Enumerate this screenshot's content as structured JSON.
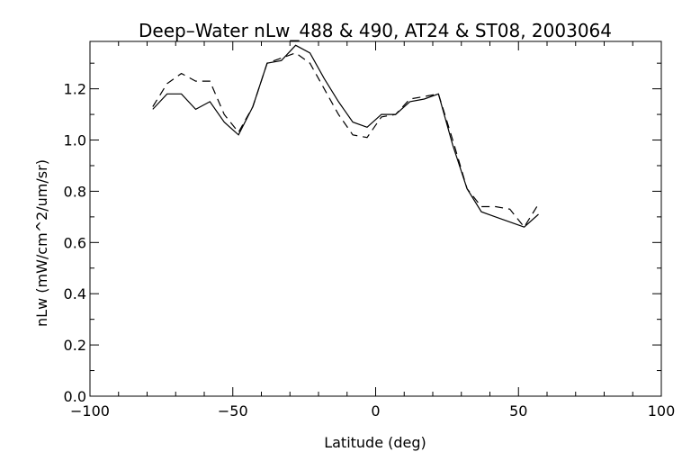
{
  "chart_data": {
    "type": "line",
    "title": "Deep–Water nLw_488 & 490, AT24 & ST08, 2003064",
    "xlabel": "Latitude (deg)",
    "ylabel": "nLw (mW/cm^2/um/sr)",
    "xlim": [
      -100,
      100
    ],
    "ylim": [
      0,
      1.385
    ],
    "grid": false,
    "x_ticks": [
      -100,
      -50,
      0,
      50,
      100
    ],
    "x_tick_labels": [
      "−100",
      "−50",
      "0",
      "50",
      "100"
    ],
    "y_ticks": [
      0.0,
      0.2,
      0.4,
      0.6,
      0.8,
      1.0,
      1.2
    ],
    "y_tick_labels": [
      "0.0",
      "0.2",
      "0.4",
      "0.6",
      "0.8",
      "1.0",
      "1.2"
    ],
    "x": [
      -78,
      -73,
      -68,
      -63,
      -58,
      -53,
      -48,
      -43,
      -38,
      -33,
      -28,
      -23,
      -18,
      -13,
      -8,
      -3,
      2,
      7,
      12,
      17,
      22,
      27,
      32,
      37,
      42,
      47,
      52,
      57
    ],
    "series": [
      {
        "name": "solid",
        "style": "solid",
        "values": [
          1.12,
          1.18,
          1.18,
          1.12,
          1.15,
          1.07,
          1.02,
          1.13,
          1.3,
          1.31,
          1.37,
          1.34,
          1.24,
          1.15,
          1.07,
          1.05,
          1.1,
          1.1,
          1.15,
          1.16,
          1.18,
          0.98,
          0.81,
          0.72,
          0.7,
          0.68,
          0.66,
          0.71
        ]
      },
      {
        "name": "dashed",
        "style": "dashed",
        "values": [
          1.13,
          1.22,
          1.26,
          1.23,
          1.23,
          1.1,
          1.03,
          1.13,
          1.3,
          1.32,
          1.34,
          1.3,
          1.2,
          1.1,
          1.02,
          1.01,
          1.09,
          1.1,
          1.16,
          1.17,
          1.18,
          1.0,
          0.81,
          0.74,
          0.74,
          0.73,
          0.66,
          0.75
        ]
      }
    ]
  }
}
